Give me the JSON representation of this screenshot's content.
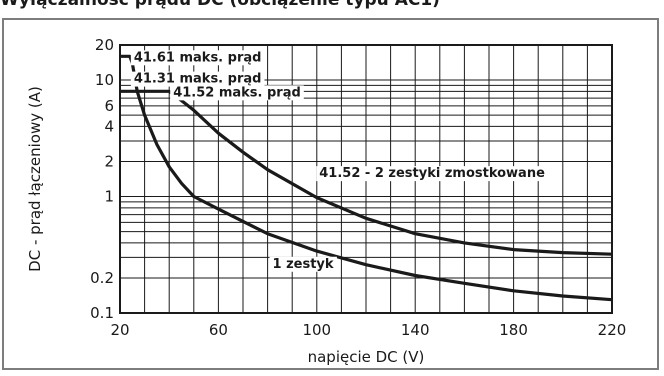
{
  "page": {
    "title": "Wyłączalność prądu DC (obciążenie typu AC1)"
  },
  "chart_data": {
    "type": "line",
    "title": "",
    "xlabel": "napięcie DC (V)",
    "ylabel": "DC - prąd łączeniowy (A)",
    "xlim": [
      20,
      220
    ],
    "ylim": [
      0.1,
      20
    ],
    "y_scale": "log",
    "grid": true,
    "x_ticks": [
      "20",
      "60",
      "100",
      "140",
      "180",
      "220"
    ],
    "y_ticks": [
      "0.1",
      "0.2",
      "1",
      "2",
      "4",
      "6",
      "10",
      "20"
    ],
    "annotations": [
      {
        "text": "41.61 maks. prąd",
        "x": 24,
        "y": 16
      },
      {
        "text": "41.31 maks. prąd",
        "x": 24,
        "y": 10.5
      },
      {
        "text": "41.52 maks. prąd",
        "x": 40,
        "y": 8
      }
    ],
    "series": [
      {
        "name": "1 zestyk",
        "x": [
          20,
          24,
          25,
          27,
          30,
          35,
          40,
          45,
          50,
          60,
          80,
          100,
          120,
          140,
          160,
          180,
          200,
          220
        ],
        "y": [
          16,
          16,
          14,
          8,
          5,
          2.8,
          1.8,
          1.3,
          1.0,
          0.78,
          0.48,
          0.34,
          0.26,
          0.21,
          0.18,
          0.155,
          0.14,
          0.13
        ]
      },
      {
        "name": "41.52 - 2 zestyki zmostkowane",
        "x": [
          20,
          40,
          43,
          50,
          60,
          70,
          80,
          100,
          120,
          140,
          160,
          180,
          200,
          220
        ],
        "y": [
          8,
          8,
          7.2,
          5.5,
          3.5,
          2.4,
          1.7,
          0.98,
          0.65,
          0.48,
          0.4,
          0.35,
          0.33,
          0.32
        ]
      }
    ]
  }
}
